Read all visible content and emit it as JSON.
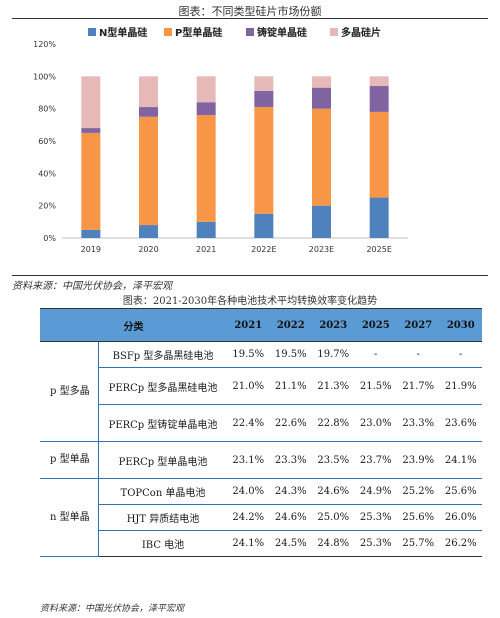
{
  "figure1": {
    "title": "图表：不同类型硅片市场份额",
    "source": "资料来源：中国光伏协会，泽平宏观"
  },
  "colors": {
    "n_type": "#4f81bd",
    "p_type": "#f79646",
    "cast_mono": "#8064a2",
    "multi": "#e6b9b8"
  },
  "chart_data": {
    "type": "bar",
    "stacked": true,
    "categories": [
      "2019",
      "2020",
      "2021",
      "2022E",
      "2023E",
      "2025E"
    ],
    "series": [
      {
        "name": "N型单晶硅",
        "color": "#4f81bd",
        "values": [
          5,
          8,
          10,
          15,
          20,
          25
        ]
      },
      {
        "name": "P型单晶硅",
        "color": "#f79646",
        "values": [
          60,
          67,
          66,
          66,
          60,
          53
        ]
      },
      {
        "name": "铸锭单晶硅",
        "color": "#8064a2",
        "values": [
          3,
          6,
          8,
          10,
          13,
          16
        ]
      },
      {
        "name": "多晶硅片",
        "color": "#e6b9b8",
        "values": [
          32,
          19,
          16,
          9,
          7,
          6
        ]
      }
    ],
    "yticks": [
      "0%",
      "20%",
      "40%",
      "60%",
      "80%",
      "100%",
      "120%"
    ],
    "ylim": [
      0,
      120
    ],
    "legend_position": "top",
    "grid": false
  },
  "figure2": {
    "title": "图表：2021-2030年各种电池技术平均转换效率变化趋势",
    "source": "资料来源：中国光伏协会，泽平宏观",
    "header": [
      "分类",
      "2021",
      "2022",
      "2023",
      "2025",
      "2027",
      "2030"
    ],
    "groups": [
      {
        "label": "p 型多晶",
        "rows": [
          {
            "name": "BSFp 型多晶黑硅电池",
            "values": [
              "19.5%",
              "19.5%",
              "19.7%",
              "-",
              "-",
              "-"
            ]
          },
          {
            "name": "PERCp 型多晶黑硅电池",
            "values": [
              "21.0%",
              "21.1%",
              "21.3%",
              "21.5%",
              "21.7%",
              "21.9%"
            ]
          },
          {
            "name": "PERCp 型铸锭单晶电池",
            "values": [
              "22.4%",
              "22.6%",
              "22.8%",
              "23.0%",
              "23.3%",
              "23.6%"
            ]
          }
        ]
      },
      {
        "label": "p 型单晶",
        "rows": [
          {
            "name": "PERCp 型单晶电池",
            "values": [
              "23.1%",
              "23.3%",
              "23.5%",
              "23.7%",
              "23.9%",
              "24.1%"
            ]
          }
        ]
      },
      {
        "label": "n 型单晶",
        "rows": [
          {
            "name": "TOPCon 单晶电池",
            "values": [
              "24.0%",
              "24.3%",
              "24.6%",
              "24.9%",
              "25.2%",
              "25.6%"
            ]
          },
          {
            "name": "HJT 异质结电池",
            "values": [
              "24.2%",
              "24.6%",
              "25.0%",
              "25.3%",
              "25.6%",
              "26.0%"
            ]
          },
          {
            "name": "IBC 电池",
            "values": [
              "24.1%",
              "24.5%",
              "24.8%",
              "25.3%",
              "25.7%",
              "26.2%"
            ]
          }
        ]
      }
    ]
  }
}
